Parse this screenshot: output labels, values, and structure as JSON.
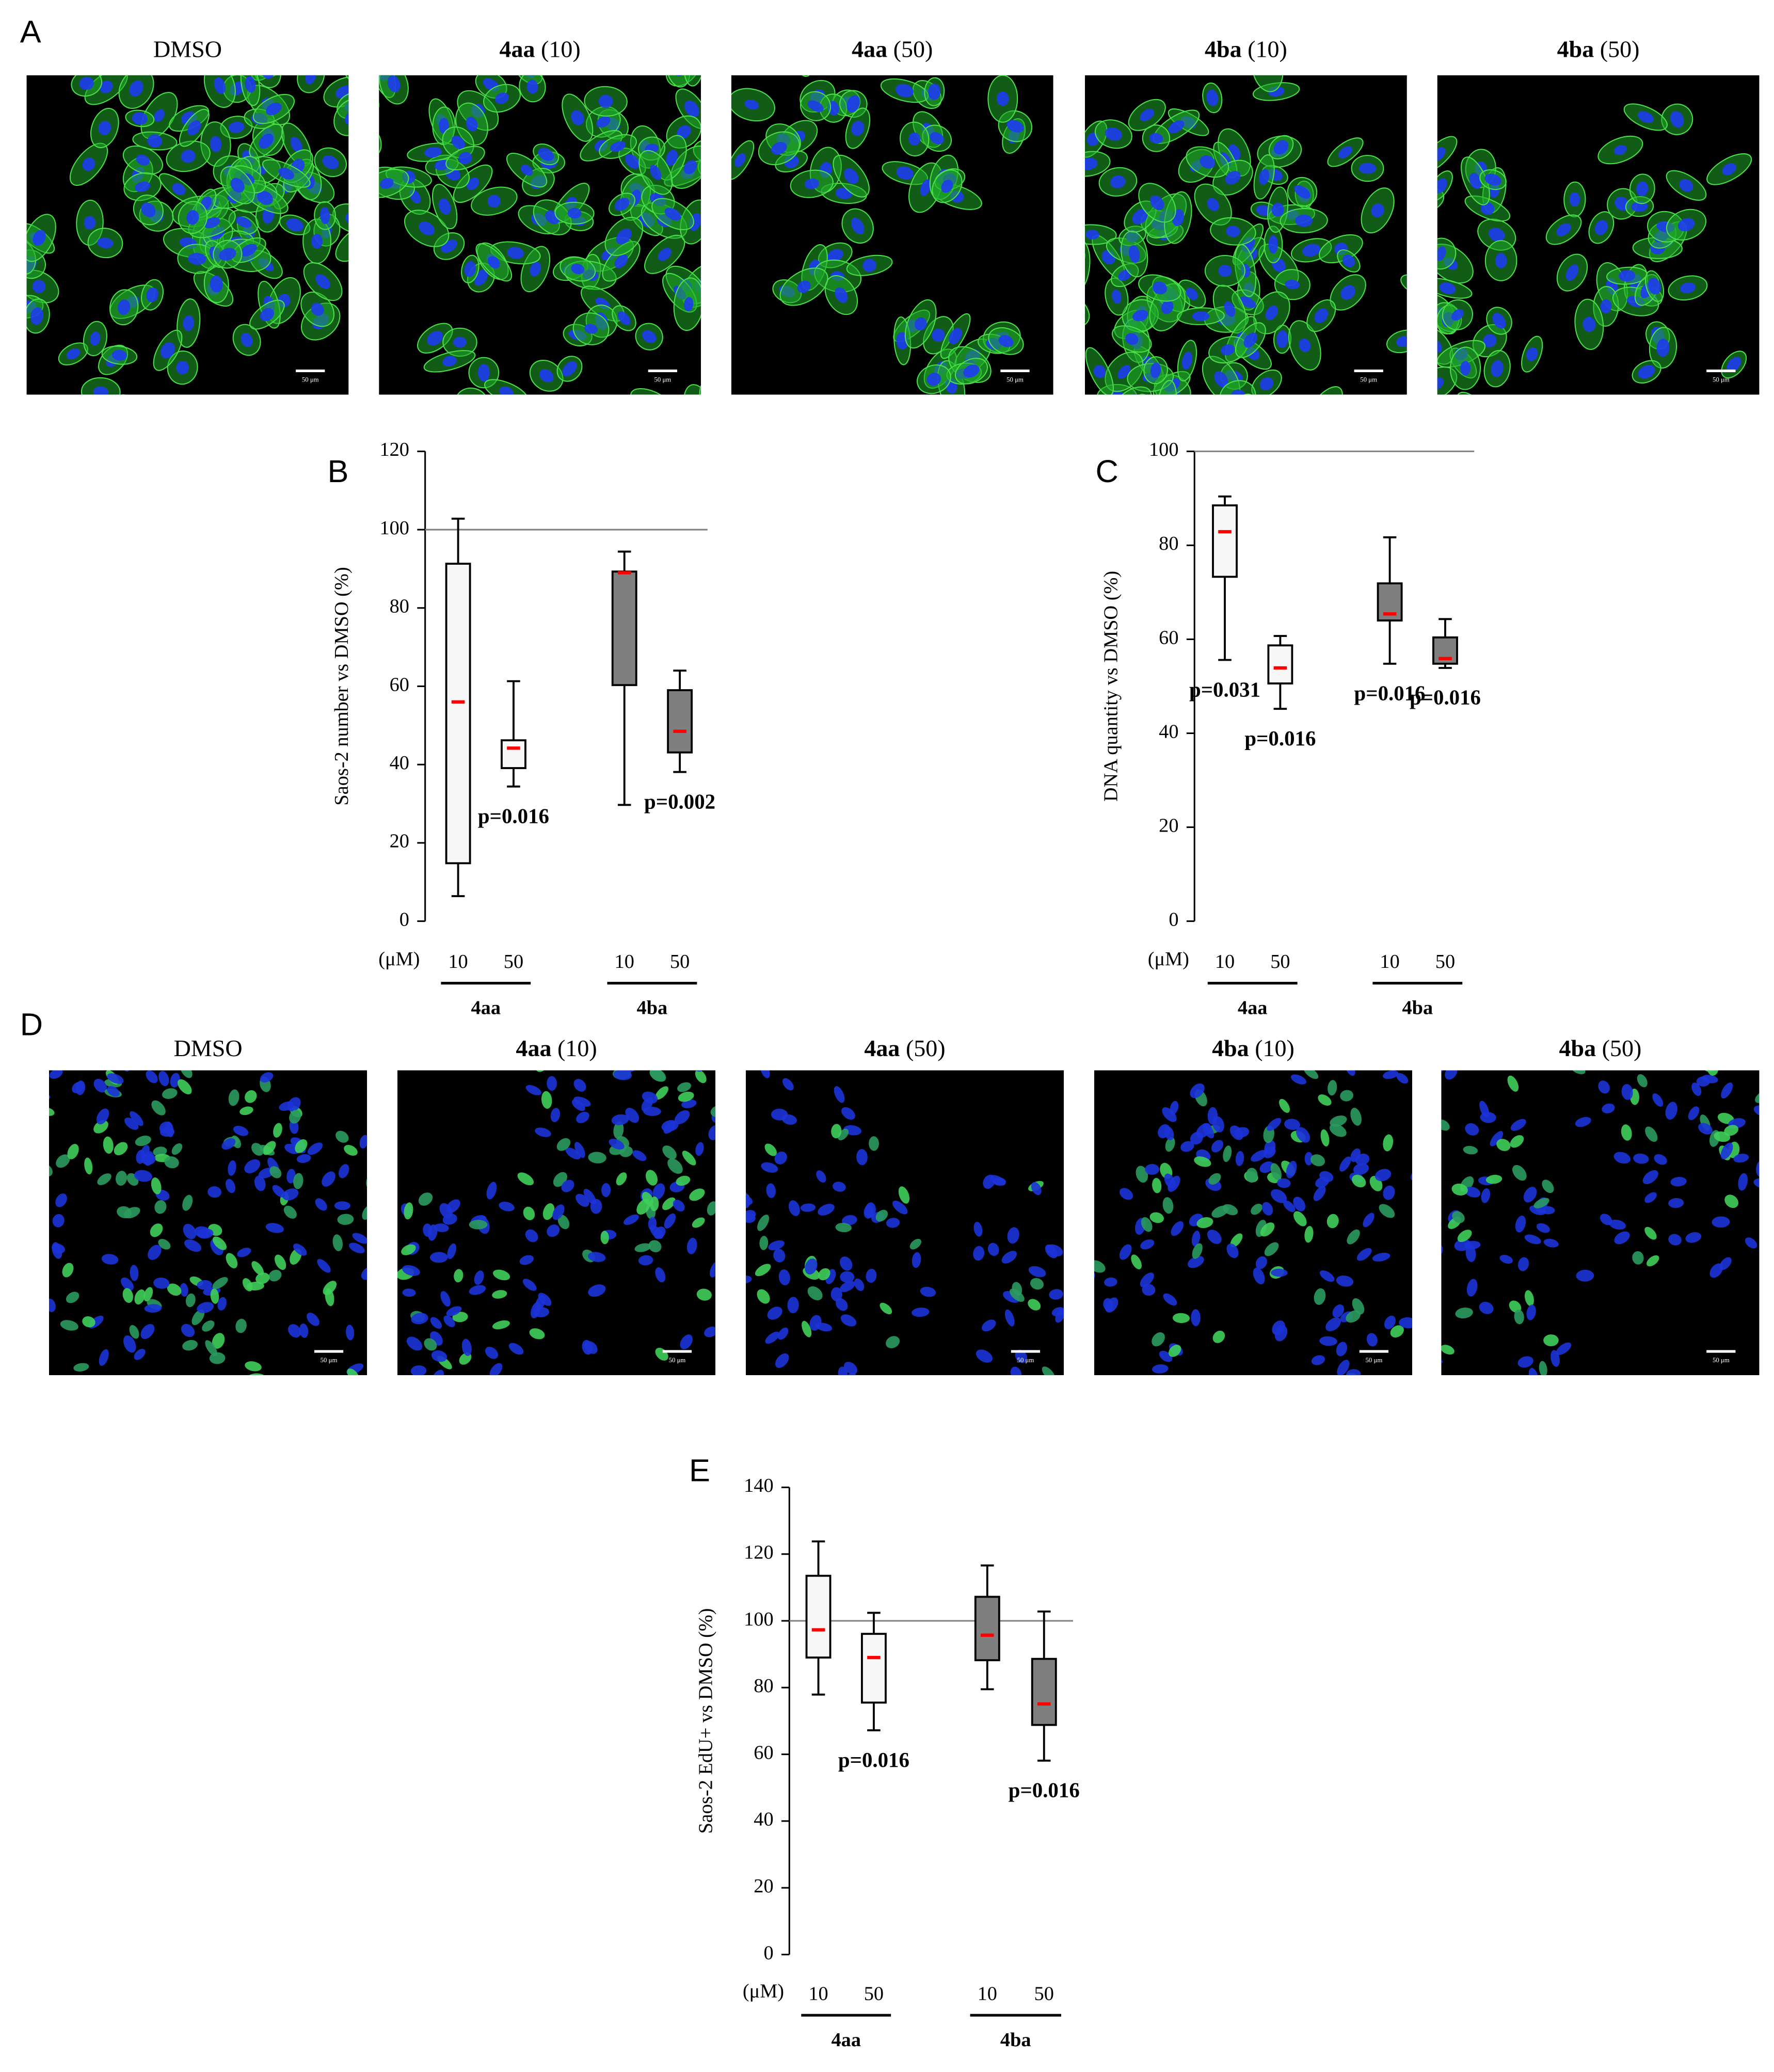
{
  "image_rows": [
    {
      "panel": "A",
      "scale_bar_label": "50 μm",
      "images": [
        {
          "compound": "DMSO",
          "bold": false
        },
        {
          "compound": "4aa",
          "dose": "(10)",
          "bold": true
        },
        {
          "compound": "4aa",
          "dose": "(50)",
          "bold": true
        },
        {
          "compound": "4ba",
          "dose": "(10)",
          "bold": true
        },
        {
          "compound": "4ba",
          "dose": "(50)",
          "bold": true
        }
      ]
    },
    {
      "panel": "D",
      "scale_bar_label": "50 μm",
      "images": [
        {
          "compound": "DMSO",
          "bold": false
        },
        {
          "compound": "4aa",
          "dose": "(10)",
          "bold": true
        },
        {
          "compound": "4aa",
          "dose": "(50)",
          "bold": true
        },
        {
          "compound": "4ba",
          "dose": "(10)",
          "bold": true
        },
        {
          "compound": "4ba",
          "dose": "(50)",
          "bold": true
        }
      ]
    }
  ],
  "chart_data": [
    {
      "type": "box",
      "panel": "B",
      "y_label": "Saos-2 number vs DMSO (%)",
      "x_unit": "(μM)",
      "ylim": [
        0,
        120
      ],
      "yticks": [
        0,
        20,
        40,
        60,
        80,
        100,
        120
      ],
      "reference_line": 100,
      "reference_color": "#808080",
      "median_color": "#ff0000",
      "series": [
        {
          "name": "4aa",
          "color": "#f7f7f7",
          "categories": [
            "10",
            "50"
          ],
          "values": [
            [
              6.4,
              14.8,
              56,
              91.3,
              102.8
            ],
            [
              34.4,
              39.1,
              44.2,
              46.2,
              61.3
            ]
          ],
          "annotations": [
            null,
            "p=0.016"
          ]
        },
        {
          "name": "4ba",
          "color": "#7f7f7f",
          "categories": [
            "10",
            "50"
          ],
          "values": [
            [
              29.7,
              60.3,
              89,
              89.3,
              94.4
            ],
            [
              38.1,
              43.1,
              48.5,
              59,
              64
            ]
          ],
          "annotations": [
            null,
            "p=0.002"
          ]
        }
      ]
    },
    {
      "type": "box",
      "panel": "C",
      "y_label": "DNA quantity vs DMSO (%)",
      "x_unit": "(μM)",
      "ylim": [
        0,
        100
      ],
      "yticks": [
        0,
        20,
        40,
        60,
        80,
        100
      ],
      "reference_line": 100,
      "reference_color": "#808080",
      "median_color": "#ff0000",
      "series": [
        {
          "name": "4aa",
          "color": "#f7f7f7",
          "categories": [
            "10",
            "50"
          ],
          "values": [
            [
              55.6,
              73.3,
              82.9,
              88.5,
              90.4
            ],
            [
              45.2,
              50.6,
              53.9,
              58.7,
              60.7
            ]
          ],
          "annotations": [
            "p=0.031",
            "p=0.016"
          ]
        },
        {
          "name": "4ba",
          "color": "#7f7f7f",
          "categories": [
            "10",
            "50"
          ],
          "values": [
            [
              54.8,
              64,
              65.4,
              71.9,
              81.7
            ],
            [
              53.9,
              54.8,
              55.9,
              60.4,
              64.3
            ]
          ],
          "annotations": [
            "p=0.016",
            "p=0.016"
          ]
        }
      ]
    },
    {
      "type": "box",
      "panel": "E",
      "y_label": "Saos-2 EdU+ vs DMSO (%)",
      "x_unit": "(μM)",
      "ylim": [
        0,
        140
      ],
      "yticks": [
        0,
        20,
        40,
        60,
        80,
        100,
        120,
        140
      ],
      "reference_line": 100,
      "reference_color": "#808080",
      "median_color": "#ff0000",
      "series": [
        {
          "name": "4aa",
          "color": "#f7f7f7",
          "categories": [
            "10",
            "50"
          ],
          "values": [
            [
              77.9,
              89,
              97.3,
              113.5,
              123.8
            ],
            [
              67.2,
              75.5,
              89,
              96.1,
              102.4
            ]
          ],
          "annotations": [
            null,
            "p=0.016"
          ]
        },
        {
          "name": "4ba",
          "color": "#7f7f7f",
          "categories": [
            "10",
            "50"
          ],
          "values": [
            [
              79.5,
              88.2,
              95.7,
              107.2,
              116.6
            ],
            [
              58.1,
              68.8,
              75.1,
              88.6,
              102.8
            ]
          ],
          "annotations": [
            null,
            "p=0.016"
          ]
        }
      ]
    }
  ]
}
